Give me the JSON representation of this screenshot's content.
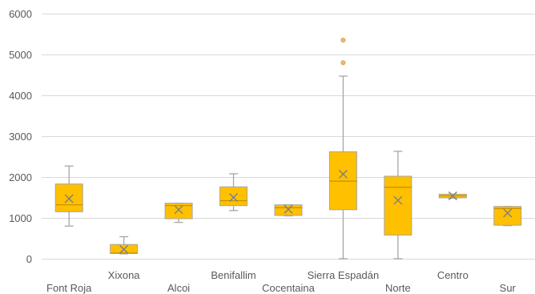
{
  "chart_data": {
    "type": "boxplot",
    "title": "",
    "xlabel": "",
    "ylabel": "",
    "ylim": [
      0,
      6000
    ],
    "y_ticks": [
      0,
      1000,
      2000,
      3000,
      4000,
      5000,
      6000
    ],
    "y_tick_labels": [
      "0",
      "1000",
      "2000",
      "3000",
      "4000",
      "5000",
      "6000"
    ],
    "grid": true,
    "legend": "none",
    "colors": {
      "box_fill": "#FFC000",
      "box_stroke": "#A6A6A6",
      "median": "#BF9000",
      "mean_marker": "#7F7F7F",
      "outlier": "#F4B183",
      "grid": "#D9D9D9",
      "axis_text": "#595959"
    },
    "categories": [
      "Font Roja",
      "Xixona",
      "Alcoi",
      "Benifallim",
      "Cocentaina",
      "Sierra Espadán",
      "Norte",
      "Centro",
      "Sur"
    ],
    "label_rows": [
      "lower",
      "upper",
      "lower",
      "upper",
      "lower",
      "upper",
      "lower",
      "upper",
      "lower"
    ],
    "boxes": [
      {
        "category": "Font Roja",
        "min": 800,
        "q1": 1150,
        "median": 1320,
        "q3": 1830,
        "max": 2270,
        "mean": 1470,
        "outliers": []
      },
      {
        "category": "Xixona",
        "min": 120,
        "q1": 130,
        "median": 140,
        "q3": 350,
        "max": 540,
        "mean": 230,
        "outliers": []
      },
      {
        "category": "Alcoi",
        "min": 890,
        "q1": 980,
        "median": 1300,
        "q3": 1360,
        "max": 1360,
        "mean": 1200,
        "outliers": []
      },
      {
        "category": "Benifallim",
        "min": 1180,
        "q1": 1300,
        "median": 1420,
        "q3": 1760,
        "max": 2080,
        "mean": 1500,
        "outliers": []
      },
      {
        "category": "Cocentaina",
        "min": 1050,
        "q1": 1060,
        "median": 1250,
        "q3": 1320,
        "max": 1320,
        "mean": 1210,
        "outliers": []
      },
      {
        "category": "Sierra Espadán",
        "min": 0,
        "q1": 1200,
        "median": 1900,
        "q3": 2620,
        "max": 4470,
        "mean": 2070,
        "outliers": [
          4800,
          5350
        ]
      },
      {
        "category": "Norte",
        "min": 0,
        "q1": 580,
        "median": 1750,
        "q3": 2020,
        "max": 2630,
        "mean": 1430,
        "outliers": []
      },
      {
        "category": "Centro",
        "min": 1480,
        "q1": 1490,
        "median": 1540,
        "q3": 1580,
        "max": 1580,
        "mean": 1540,
        "outliers": []
      },
      {
        "category": "Sur",
        "min": 810,
        "q1": 820,
        "median": 1230,
        "q3": 1280,
        "max": 1280,
        "mean": 1120,
        "outliers": []
      }
    ]
  }
}
